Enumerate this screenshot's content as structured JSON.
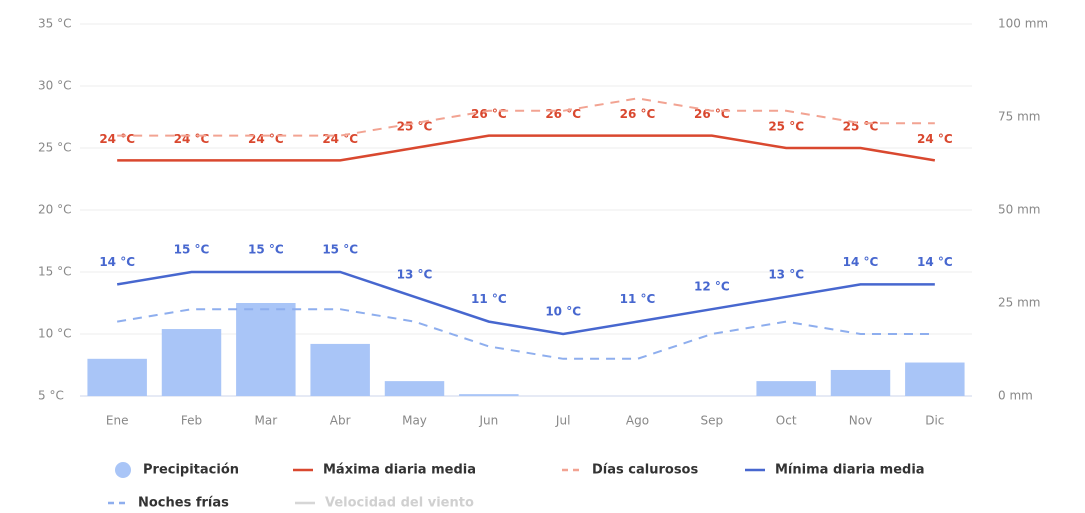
{
  "chart_data": {
    "type": "combo",
    "categories": [
      "Ene",
      "Feb",
      "Mar",
      "Abr",
      "May",
      "Jun",
      "Jul",
      "Ago",
      "Sep",
      "Oct",
      "Nov",
      "Dic"
    ],
    "ylim": [
      5,
      35
    ],
    "yticks": [
      {
        "value": 5,
        "label": "5 °C"
      },
      {
        "value": 10,
        "label": "10 °C"
      },
      {
        "value": 15,
        "label": "15 °C"
      },
      {
        "value": 20,
        "label": "20 °C"
      },
      {
        "value": 25,
        "label": "25 °C"
      },
      {
        "value": 30,
        "label": "30 °C"
      },
      {
        "value": 35,
        "label": "35 °C"
      }
    ],
    "y2lim": [
      0,
      100
    ],
    "y2ticks": [
      {
        "value": 0,
        "label": "0 mm"
      },
      {
        "value": 25,
        "label": "25 mm"
      },
      {
        "value": 50,
        "label": "50 mm"
      },
      {
        "value": 75,
        "label": "75 mm"
      },
      {
        "value": 100,
        "label": "100 mm"
      }
    ],
    "grid": true,
    "series": [
      {
        "name": "Precipitación",
        "type": "bar",
        "axis": "y2",
        "color": "#a9c5f7",
        "values": [
          10,
          18,
          25,
          14,
          4,
          0.5,
          0,
          0,
          0,
          4,
          7,
          9
        ]
      },
      {
        "name": "Máxima diaria media",
        "type": "line",
        "color": "#d9482f",
        "dash": false,
        "values": [
          24,
          24,
          24,
          24,
          25,
          26,
          26,
          26,
          26,
          25,
          25,
          24
        ],
        "value_labels": [
          "24 °C",
          "24 °C",
          "24 °C",
          "24 °C",
          "25 °C",
          "26 °C",
          "26 °C",
          "26 °C",
          "26 °C",
          "25 °C",
          "25 °C",
          "24 °C"
        ]
      },
      {
        "name": "Días calurosos",
        "type": "line",
        "color": "#f2a392",
        "dash": true,
        "values": [
          26,
          26,
          26,
          26,
          27,
          28,
          28,
          29,
          28,
          28,
          27,
          27
        ]
      },
      {
        "name": "Mínima diaria media",
        "type": "line",
        "color": "#4767cf",
        "dash": false,
        "values": [
          14,
          15,
          15,
          15,
          13,
          11,
          10,
          11,
          12,
          13,
          14,
          14
        ],
        "value_labels": [
          "14 °C",
          "15 °C",
          "15 °C",
          "15 °C",
          "13 °C",
          "11 °C",
          "10 °C",
          "11 °C",
          "12 °C",
          "13 °C",
          "14 °C",
          "14 °C"
        ]
      },
      {
        "name": "Noches frías",
        "type": "line",
        "color": "#8eaeee",
        "dash": true,
        "values": [
          11,
          12,
          12,
          12,
          11,
          9,
          8,
          8,
          10,
          11,
          10,
          10
        ]
      },
      {
        "name": "Velocidad del viento",
        "type": "line",
        "color": "#d6d6d6",
        "hidden": true,
        "values": [
          null,
          null,
          null,
          null,
          null,
          null,
          null,
          null,
          null,
          null,
          null,
          null
        ]
      }
    ]
  }
}
